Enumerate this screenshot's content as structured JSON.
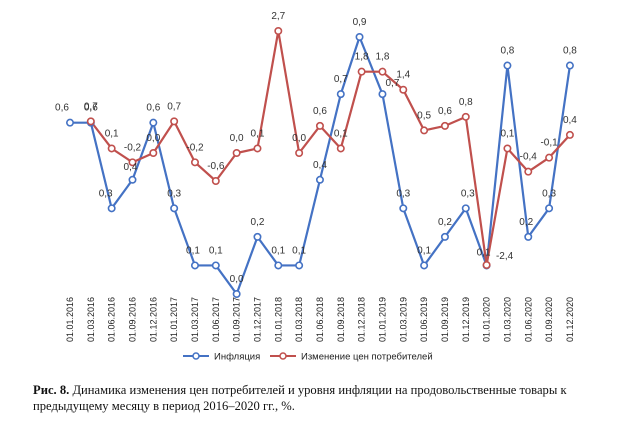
{
  "caption": {
    "label": "Рис. 8.",
    "text": "Динамика изменения цен потребителей и уровня инфляции на продовольственные товары к предыдущему месяцу в период 2016–2020 гг., %."
  },
  "chart_data": {
    "type": "line",
    "x_ticks": [
      "01.01.2016",
      "01.03.2016",
      "01.06.2016",
      "01.09.2016",
      "01.12.2016",
      "01.01.2017",
      "01.03.2017",
      "01.06.2017",
      "01.09.2017",
      "01.12.2017",
      "01.01.2018",
      "01.03.2018",
      "01.06.2018",
      "01.09.2018",
      "01.12.2018",
      "01.01.2019",
      "01.03.2019",
      "01.06.2019",
      "01.09.2019",
      "01.12.2019",
      "01.01.2020",
      "01.03.2020",
      "01.06.2020",
      "01.09.2020",
      "01.12.2020"
    ],
    "legend_position": "bottom",
    "grid": false,
    "series": [
      {
        "name": "Инфляция",
        "color": "#4472C4",
        "points": [
          {
            "x": 0.0,
            "y": 0.6,
            "label": "0,6"
          },
          {
            "x": 1.0,
            "y": 0.6,
            "label": "0,6"
          },
          {
            "x": 2.0,
            "y": 0.3,
            "label": "0,3"
          },
          {
            "x": 3.0,
            "y": 0.4,
            "label": "0,4"
          },
          {
            "x": 4.0,
            "y": 0.6,
            "label": "0,6"
          },
          {
            "x": 5.0,
            "y": 0.3,
            "label": "0,3"
          },
          {
            "x": 6.0,
            "y": 0.1,
            "label": "0,1"
          },
          {
            "x": 7.0,
            "y": 0.1,
            "label": "0,1"
          },
          {
            "x": 8.0,
            "y": 0.0,
            "label": "0,0"
          },
          {
            "x": 9.0,
            "y": 0.2,
            "label": "0,2"
          },
          {
            "x": 10.0,
            "y": 0.1,
            "label": "0,1"
          },
          {
            "x": 11.0,
            "y": 0.1,
            "label": "0,1"
          },
          {
            "x": 12.0,
            "y": 0.4,
            "label": "0,4"
          },
          {
            "x": 13.0,
            "y": 0.7,
            "label": "0,7"
          },
          {
            "x": 13.9,
            "y": 0.9,
            "label": "0,9"
          },
          {
            "x": 15.0,
            "y": 0.7,
            "label": "0,7"
          },
          {
            "x": 16.0,
            "y": 0.3,
            "label": "0,3"
          },
          {
            "x": 17.0,
            "y": 0.1,
            "label": "0,1"
          },
          {
            "x": 18.0,
            "y": 0.2,
            "label": "0,2"
          },
          {
            "x": 19.0,
            "y": 0.3,
            "label": "0,3"
          },
          {
            "x": 20.0,
            "y": 0.1,
            "label": "0,1"
          },
          {
            "x": 21.0,
            "y": 0.8,
            "label": "0,8"
          },
          {
            "x": 22.0,
            "y": 0.2,
            "label": "0,2"
          },
          {
            "x": 23.0,
            "y": 0.3,
            "label": "0,3"
          },
          {
            "x": 24.0,
            "y": 0.8,
            "label": "0,8"
          }
        ]
      },
      {
        "name": "Изменение цен потребителей",
        "color": "#C0504D",
        "points": [
          {
            "x": 1.0,
            "y": 0.7,
            "label": "0,7"
          },
          {
            "x": 2.0,
            "y": 0.1,
            "label": "0,1"
          },
          {
            "x": 3.0,
            "y": -0.2,
            "label": "-0,2"
          },
          {
            "x": 4.0,
            "y": 0.0,
            "label": "0,0"
          },
          {
            "x": 5.0,
            "y": 0.7,
            "label": "0,7"
          },
          {
            "x": 6.0,
            "y": -0.2,
            "label": "-0,2"
          },
          {
            "x": 7.0,
            "y": -0.6,
            "label": "-0,6"
          },
          {
            "x": 8.0,
            "y": 0.0,
            "label": "0,0"
          },
          {
            "x": 9.0,
            "y": 0.1,
            "label": "0,1"
          },
          {
            "x": 10.0,
            "y": 2.7,
            "label": "2,7"
          },
          {
            "x": 11.0,
            "y": 0.0,
            "label": "0,0"
          },
          {
            "x": 12.0,
            "y": 0.6,
            "label": "0,6"
          },
          {
            "x": 13.0,
            "y": 0.1,
            "label": "0,1"
          },
          {
            "x": 14.0,
            "y": 1.8,
            "label": "1,8"
          },
          {
            "x": 15.0,
            "y": 1.8,
            "label": "1,8"
          },
          {
            "x": 16.0,
            "y": 1.4,
            "label": "1,4"
          },
          {
            "x": 17.0,
            "y": 0.5,
            "label": "0,5"
          },
          {
            "x": 18.0,
            "y": 0.6,
            "label": "0,6"
          },
          {
            "x": 19.0,
            "y": 0.8,
            "label": "0,8"
          },
          {
            "x": 20.0,
            "y": -2.4,
            "label": "-2,4"
          },
          {
            "x": 21.0,
            "y": 0.1,
            "label": "0,1"
          },
          {
            "x": 22.0,
            "y": -0.4,
            "label": "-0,4"
          },
          {
            "x": 23.0,
            "y": -0.1,
            "label": "-0,1"
          },
          {
            "x": 24.0,
            "y": 0.4,
            "label": "0,4"
          }
        ]
      }
    ]
  }
}
